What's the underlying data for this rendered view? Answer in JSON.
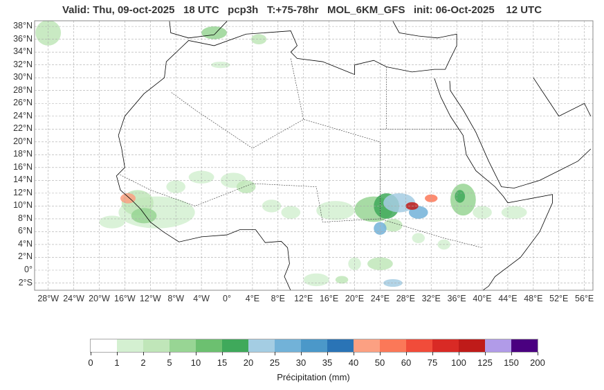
{
  "title": "Valid: Thu, 09-oct-2025   18 UTC   pcp3h   T:+75-78hr   MOL_6KM_GFS   init: 06-Oct-2025    12 UTC",
  "map": {
    "lat_labels": [
      "38°N",
      "36°N",
      "34°N",
      "32°N",
      "30°N",
      "28°N",
      "26°N",
      "24°N",
      "22°N",
      "20°N",
      "18°N",
      "16°N",
      "14°N",
      "12°N",
      "10°N",
      "8°N",
      "6°N",
      "4°N",
      "2°N",
      "0°",
      "2°S"
    ],
    "lon_labels": [
      "28°W",
      "24°W",
      "20°W",
      "16°W",
      "12°W",
      "8°W",
      "4°W",
      "0°",
      "4°E",
      "8°E",
      "12°E",
      "16°E",
      "20°E",
      "24°E",
      "28°E",
      "32°E",
      "36°E",
      "40°E",
      "44°E",
      "48°E",
      "52°E",
      "56°E"
    ],
    "grid": true
  },
  "colorbar": {
    "label": "Précipitation (mm)",
    "ticks": [
      "0",
      "1",
      "2",
      "5",
      "10",
      "15",
      "20",
      "25",
      "30",
      "35",
      "40",
      "50",
      "60",
      "75",
      "100",
      "125",
      "150",
      "200"
    ],
    "colors": [
      "#ffffff",
      "#d4f0d1",
      "#c0e6b9",
      "#98d594",
      "#6cc070",
      "#3fa95b",
      "#a4cde3",
      "#72b2d8",
      "#4b98c9",
      "#2a74b6",
      "#fca082",
      "#fb7858",
      "#f14c3a",
      "#d92a25",
      "#bf1b19",
      "#b19be8",
      "#4a0080"
    ]
  }
}
